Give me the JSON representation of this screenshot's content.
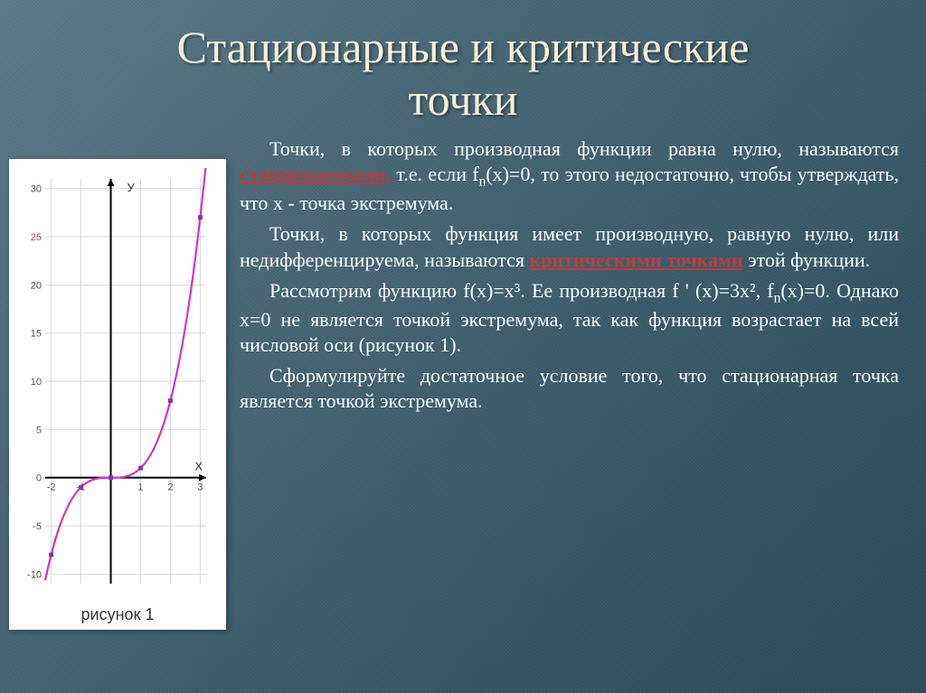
{
  "title_line1": "Стационарные и критические",
  "title_line2": "точки",
  "paragraphs": {
    "p1a": "Точки, в которых производная функции равна нулю, называются ",
    "p1kw": "стационарными,",
    "p1b": " т.е. если f",
    "p1sub1": "n",
    "p1c": "(x)=0, то этого недостаточно, чтобы утверждать, что x - точка экстремума.",
    "p2a": "Точки, в которых функция имеет производную, равную нулю, или недифференцируема, называются ",
    "p2kw": "критическими точками",
    "p2b": " этой функции.",
    "p3a": "Рассмотрим функцию f(x)=x³. Ее производная f ' (x)=3x², f",
    "p3sub1": "n",
    "p3b": "(x)=0. Однако x=0 не является точкой экстремума, так как функция возрастает на всей числовой оси (рисунок 1).",
    "p4": "Сформулируйте достаточное условие того, что стационарная точка является точкой экстремума."
  },
  "chart": {
    "caption": "рисунок 1",
    "y_label": "У",
    "x_label": "Х",
    "x_ticks": [
      -2,
      -1,
      0,
      1,
      2,
      3
    ],
    "y_ticks": [
      -10,
      -5,
      0,
      5,
      10,
      15,
      20,
      25,
      30
    ],
    "y_top_color_tick": "25",
    "x_range": [
      -2.2,
      3.2
    ],
    "y_range": [
      -11,
      31
    ],
    "function": "x_cubed",
    "curve_color": "#d135c8",
    "axis_color": "#000000",
    "grid_color": "#cccccc",
    "axis_width": 2,
    "curve_width": 2.2,
    "marker_color": "#9030b0",
    "background": "#ffffff",
    "tick_font_size": 11
  }
}
